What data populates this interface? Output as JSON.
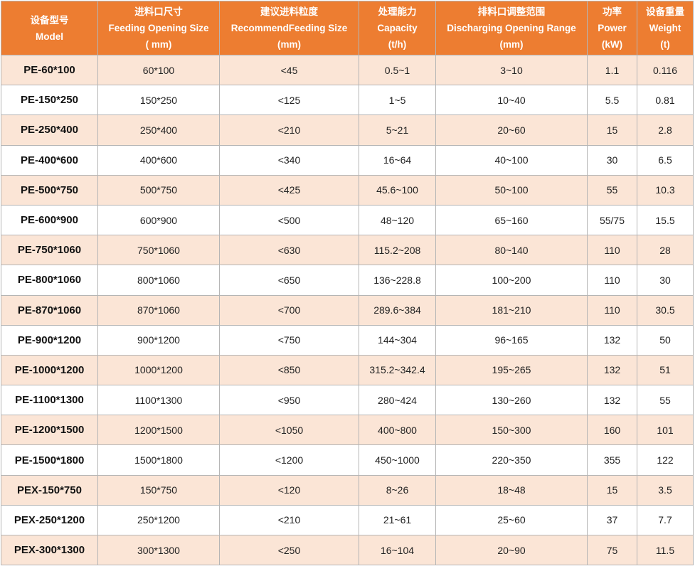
{
  "header": {
    "model": [
      "设备型号",
      "Model"
    ],
    "feeding_size": [
      "进料口尺寸",
      "Feeding Opening Size",
      "( mm)"
    ],
    "recommend_size": [
      "建议进料粒度",
      "RecommendFeeding Size",
      "(mm)"
    ],
    "capacity": [
      "处理能力",
      "Capacity",
      "(t/h)"
    ],
    "discharge_range": [
      "排料口调整范围",
      "Discharging Opening Range",
      "(mm)"
    ],
    "power": [
      "功率",
      "Power",
      "(kW)"
    ],
    "weight": [
      "设备重量",
      "Weight",
      "(t)"
    ]
  },
  "rows": [
    {
      "model": "PE-60*100",
      "feeding": "60*100",
      "recommend": "<45",
      "capacity": "0.5~1",
      "discharge": "3~10",
      "power": "1.1",
      "weight": "0.116"
    },
    {
      "model": "PE-150*250",
      "feeding": "150*250",
      "recommend": "<125",
      "capacity": "1~5",
      "discharge": "10~40",
      "power": "5.5",
      "weight": "0.81"
    },
    {
      "model": "PE-250*400",
      "feeding": "250*400",
      "recommend": "<210",
      "capacity": "5~21",
      "discharge": "20~60",
      "power": "15",
      "weight": "2.8"
    },
    {
      "model": "PE-400*600",
      "feeding": "400*600",
      "recommend": "<340",
      "capacity": "16~64",
      "discharge": "40~100",
      "power": "30",
      "weight": "6.5"
    },
    {
      "model": "PE-500*750",
      "feeding": "500*750",
      "recommend": "<425",
      "capacity": "45.6~100",
      "discharge": "50~100",
      "power": "55",
      "weight": "10.3"
    },
    {
      "model": "PE-600*900",
      "feeding": "600*900",
      "recommend": "<500",
      "capacity": "48~120",
      "discharge": "65~160",
      "power": "55/75",
      "weight": "15.5"
    },
    {
      "model": "PE-750*1060",
      "feeding": "750*1060",
      "recommend": "<630",
      "capacity": "115.2~208",
      "discharge": "80~140",
      "power": "110",
      "weight": "28"
    },
    {
      "model": "PE-800*1060",
      "feeding": "800*1060",
      "recommend": "<650",
      "capacity": "136~228.8",
      "discharge": "100~200",
      "power": "110",
      "weight": "30"
    },
    {
      "model": "PE-870*1060",
      "feeding": "870*1060",
      "recommend": "<700",
      "capacity": "289.6~384",
      "discharge": "181~210",
      "power": "110",
      "weight": "30.5"
    },
    {
      "model": "PE-900*1200",
      "feeding": "900*1200",
      "recommend": "<750",
      "capacity": "144~304",
      "discharge": "96~165",
      "power": "132",
      "weight": "50"
    },
    {
      "model": "PE-1000*1200",
      "feeding": "1000*1200",
      "recommend": "<850",
      "capacity": "315.2~342.4",
      "discharge": "195~265",
      "power": "132",
      "weight": "51"
    },
    {
      "model": "PE-1100*1300",
      "feeding": "1100*1300",
      "recommend": "<950",
      "capacity": "280~424",
      "discharge": "130~260",
      "power": "132",
      "weight": "55"
    },
    {
      "model": "PE-1200*1500",
      "feeding": "1200*1500",
      "recommend": "<1050",
      "capacity": "400~800",
      "discharge": "150~300",
      "power": "160",
      "weight": "101"
    },
    {
      "model": "PE-1500*1800",
      "feeding": "1500*1800",
      "recommend": "<1200",
      "capacity": "450~1000",
      "discharge": "220~350",
      "power": "355",
      "weight": "122"
    },
    {
      "model": "PEX-150*750",
      "feeding": "150*750",
      "recommend": "<120",
      "capacity": "8~26",
      "discharge": "18~48",
      "power": "15",
      "weight": "3.5"
    },
    {
      "model": "PEX-250*1200",
      "feeding": "250*1200",
      "recommend": "<210",
      "capacity": "21~61",
      "discharge": "25~60",
      "power": "37",
      "weight": "7.7"
    },
    {
      "model": "PEX-300*1300",
      "feeding": "300*1300",
      "recommend": "<250",
      "capacity": "16~104",
      "discharge": "20~90",
      "power": "75",
      "weight": "11.5"
    }
  ],
  "colors": {
    "header_bg": "#ed7d31",
    "header_text": "#ffffff",
    "odd_row_bg": "#fbe5d6",
    "even_row_bg": "#ffffff",
    "border": "#b5b5b5"
  }
}
